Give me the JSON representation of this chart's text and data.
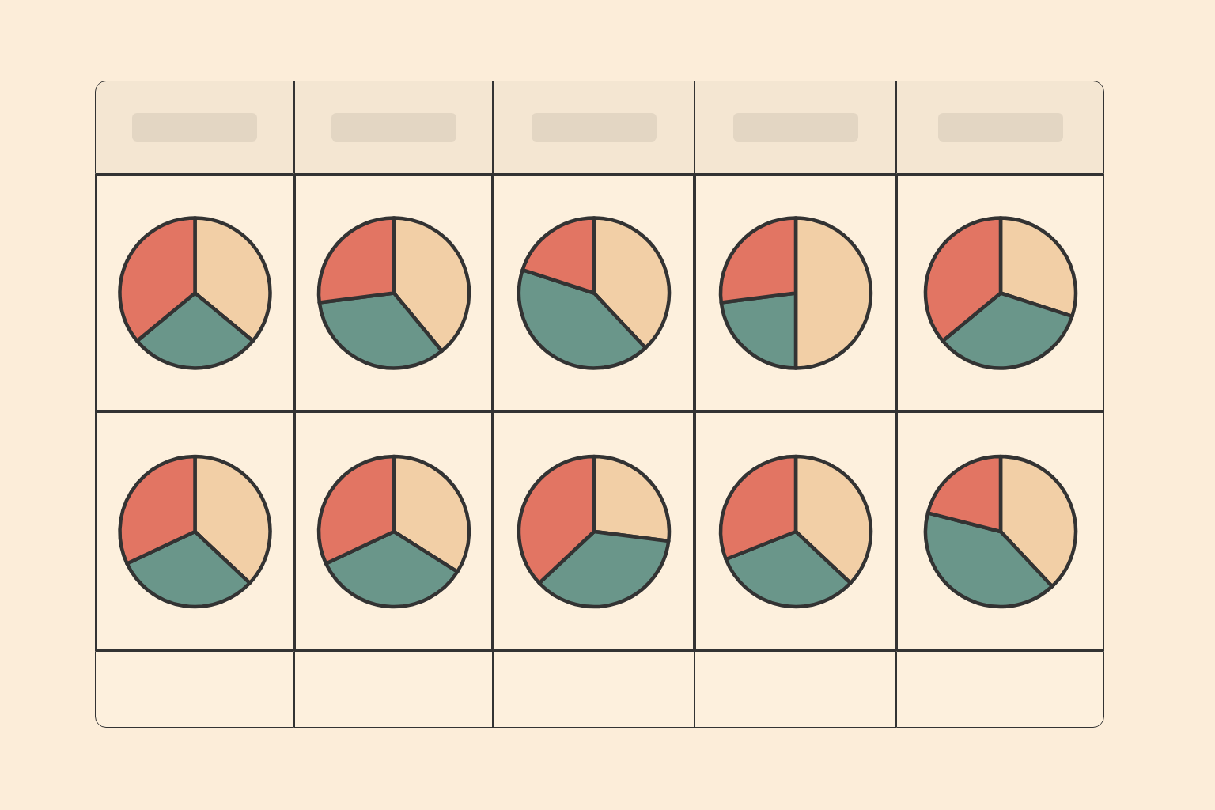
{
  "chart_data": [
    {
      "type": "pie",
      "categories": [
        null,
        null,
        null
      ],
      "values": [
        36,
        28,
        36
      ],
      "colors": [
        "#f2cfa6",
        "#6a968a",
        "#e27563"
      ]
    },
    {
      "type": "pie",
      "categories": [
        null,
        null,
        null
      ],
      "values": [
        39,
        34,
        27
      ],
      "colors": [
        "#f2cfa6",
        "#6a968a",
        "#e27563"
      ]
    },
    {
      "type": "pie",
      "categories": [
        null,
        null,
        null
      ],
      "values": [
        38,
        42,
        20
      ],
      "colors": [
        "#f2cfa6",
        "#6a968a",
        "#e27563"
      ]
    },
    {
      "type": "pie",
      "categories": [
        null,
        null,
        null
      ],
      "values": [
        50,
        23,
        27
      ],
      "colors": [
        "#f2cfa6",
        "#6a968a",
        "#e27563"
      ]
    },
    {
      "type": "pie",
      "categories": [
        null,
        null,
        null
      ],
      "values": [
        30,
        34,
        36
      ],
      "colors": [
        "#f2cfa6",
        "#6a968a",
        "#e27563"
      ]
    },
    {
      "type": "pie",
      "categories": [
        null,
        null,
        null
      ],
      "values": [
        37,
        31,
        32
      ],
      "colors": [
        "#f2cfa6",
        "#6a968a",
        "#e27563"
      ]
    },
    {
      "type": "pie",
      "categories": [
        null,
        null,
        null
      ],
      "values": [
        34,
        34,
        32
      ],
      "colors": [
        "#f2cfa6",
        "#6a968a",
        "#e27563"
      ]
    },
    {
      "type": "pie",
      "categories": [
        null,
        null,
        null
      ],
      "values": [
        27,
        36,
        37
      ],
      "colors": [
        "#f2cfa6",
        "#6a968a",
        "#e27563"
      ]
    },
    {
      "type": "pie",
      "categories": [
        null,
        null,
        null
      ],
      "values": [
        37,
        32,
        31
      ],
      "colors": [
        "#f2cfa6",
        "#6a968a",
        "#e27563"
      ]
    },
    {
      "type": "pie",
      "categories": [
        null,
        null,
        null
      ],
      "values": [
        38,
        41,
        21
      ],
      "colors": [
        "#f2cfa6",
        "#6a968a",
        "#e27563"
      ]
    }
  ]
}
